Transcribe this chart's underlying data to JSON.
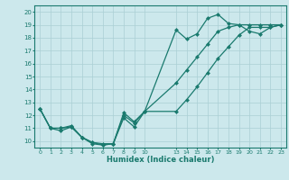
{
  "xlabel": "Humidex (Indice chaleur)",
  "bg_color": "#cce8ec",
  "line_color": "#1a7a6e",
  "grid_color": "#aacfd4",
  "line1_x": [
    0,
    1,
    2,
    3,
    4,
    5,
    6,
    7,
    8,
    9,
    10,
    13,
    14,
    15,
    16,
    17,
    18,
    19,
    20,
    21,
    22,
    23
  ],
  "line1_y": [
    12.5,
    11.0,
    11.0,
    11.2,
    10.3,
    9.8,
    9.7,
    9.8,
    11.8,
    11.1,
    12.3,
    18.6,
    17.9,
    18.3,
    19.5,
    19.8,
    19.1,
    19.0,
    18.5,
    18.3,
    18.8,
    19.0
  ],
  "line2_x": [
    0,
    1,
    2,
    3,
    4,
    5,
    6,
    7,
    8,
    9,
    10,
    13,
    14,
    15,
    16,
    17,
    18,
    19,
    20,
    21,
    22,
    23
  ],
  "line2_y": [
    12.5,
    11.0,
    11.0,
    11.1,
    10.3,
    9.9,
    9.8,
    9.8,
    12.2,
    11.5,
    12.3,
    14.5,
    15.5,
    16.5,
    17.5,
    18.5,
    18.8,
    19.0,
    19.0,
    19.0,
    19.0,
    19.0
  ],
  "line3_x": [
    0,
    1,
    2,
    3,
    4,
    5,
    6,
    7,
    8,
    9,
    10,
    13,
    14,
    15,
    16,
    17,
    18,
    19,
    20,
    21,
    22,
    23
  ],
  "line3_y": [
    12.5,
    11.0,
    10.8,
    11.1,
    10.3,
    9.9,
    9.7,
    9.8,
    12.0,
    11.4,
    12.3,
    12.3,
    13.2,
    14.2,
    15.3,
    16.4,
    17.3,
    18.2,
    18.8,
    18.8,
    18.8,
    19.0
  ],
  "xtick_positions": [
    0,
    1,
    2,
    3,
    4,
    5,
    6,
    7,
    8,
    9,
    10,
    13,
    14,
    15,
    16,
    17,
    18,
    19,
    20,
    21,
    22,
    23
  ],
  "xtick_labels": [
    "0",
    "1",
    "2",
    "3",
    "4",
    "5",
    "6",
    "7",
    "8",
    "9",
    "10",
    "13",
    "14",
    "15",
    "16",
    "17",
    "18",
    "19",
    "20",
    "21",
    "22",
    "23"
  ],
  "ytick_positions": [
    10,
    11,
    12,
    13,
    14,
    15,
    16,
    17,
    18,
    19,
    20
  ],
  "ytick_labels": [
    "10",
    "11",
    "12",
    "13",
    "14",
    "15",
    "16",
    "17",
    "18",
    "19",
    "20"
  ],
  "xlim": [
    -0.5,
    23.5
  ],
  "ylim": [
    9.5,
    20.5
  ]
}
